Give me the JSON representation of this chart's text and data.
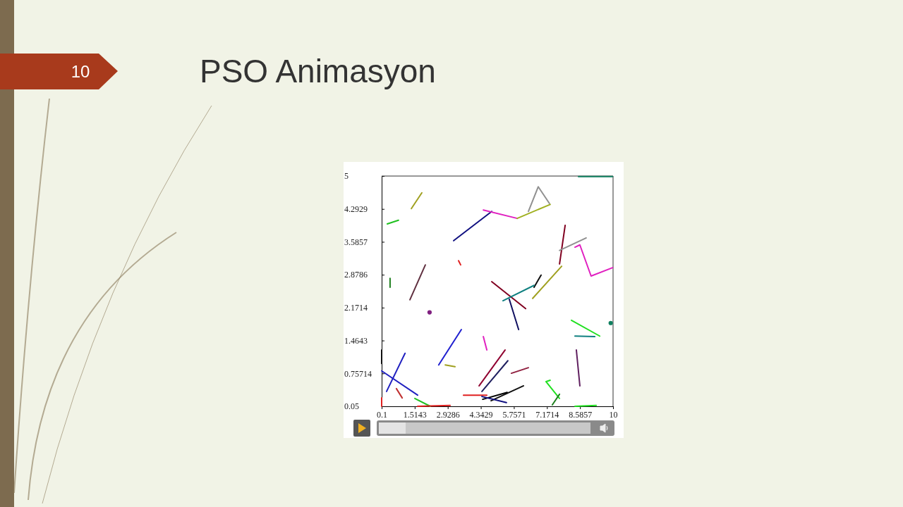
{
  "chart_data": {
    "type": "line",
    "title": "PSO Animasyon",
    "annotations": [
      "10"
    ],
    "xlim": [
      0.1,
      10
    ],
    "ylim": [
      0.05,
      5
    ],
    "xticks": [
      0.1,
      1.5143,
      2.9286,
      4.3429,
      5.7571,
      7.1714,
      8.5857,
      10
    ],
    "yticks": [
      0.05,
      0.75714,
      1.4643,
      2.1714,
      2.8786,
      3.5857,
      4.2929,
      5
    ],
    "grid": false,
    "line_style": "solid",
    "series": [
      {
        "color": "#a0a020",
        "x": [
          1.37,
          1.82
        ],
        "values": [
          4.3,
          4.64
        ]
      },
      {
        "color": "#20c020",
        "x": [
          0.34,
          0.82
        ],
        "values": [
          3.97,
          4.05
        ]
      },
      {
        "color": "#101080",
        "x": [
          3.18,
          4.81
        ],
        "values": [
          3.61,
          4.24
        ]
      },
      {
        "color": "#e020c0",
        "x": [
          4.45,
          5.9
        ],
        "values": [
          4.27,
          4.09
        ]
      },
      {
        "color": "#a0b020",
        "x": [
          5.9,
          7.31
        ],
        "values": [
          4.09,
          4.39
        ]
      },
      {
        "color": "#909090",
        "x": [
          6.38,
          6.8,
          7.28
        ],
        "values": [
          4.24,
          4.77,
          4.41
        ]
      },
      {
        "color": "#108060",
        "x": [
          8.52,
          9.98
        ],
        "values": [
          4.99,
          4.99
        ]
      },
      {
        "color": "#800020",
        "x": [
          7.71,
          7.95
        ],
        "values": [
          3.11,
          3.94
        ]
      },
      {
        "color": "#909090",
        "x": [
          7.71,
          8.85
        ],
        "values": [
          3.4,
          3.67
        ]
      },
      {
        "color": "#e020c0",
        "x": [
          8.37,
          8.58,
          9.06,
          9.98
        ],
        "values": [
          3.47,
          3.52,
          2.85,
          3.03
        ]
      },
      {
        "color": "#a0a020",
        "x": [
          6.56,
          7.8
        ],
        "values": [
          2.37,
          3.06
        ]
      },
      {
        "color": "#101010",
        "x": [
          6.62,
          6.92
        ],
        "values": [
          2.61,
          2.87
        ]
      },
      {
        "color": "#800020",
        "x": [
          4.81,
          6.26
        ],
        "values": [
          2.73,
          2.15
        ]
      },
      {
        "color": "#108080",
        "x": [
          5.29,
          6.62
        ],
        "values": [
          2.32,
          2.65
        ]
      },
      {
        "color": "#101060",
        "x": [
          5.56,
          5.96
        ],
        "values": [
          2.35,
          1.7
        ]
      },
      {
        "color": "#603040",
        "x": [
          1.31,
          1.97
        ],
        "values": [
          2.34,
          3.09
        ]
      },
      {
        "color": "#208020",
        "x": [
          0.46,
          0.46
        ],
        "values": [
          2.61,
          2.8
        ]
      },
      {
        "color": "#e02020",
        "x": [
          3.39,
          3.48
        ],
        "values": [
          3.18,
          3.09
        ]
      },
      {
        "type": "scatter",
        "marker": "circle",
        "color": "#802080",
        "x": [
          2.15
        ],
        "values": [
          2.07
        ]
      },
      {
        "color": "#2020d0",
        "x": [
          2.54,
          3.51
        ],
        "values": [
          0.94,
          1.7
        ]
      },
      {
        "color": "#a0a020",
        "x": [
          2.82,
          3.24
        ],
        "values": [
          0.94,
          0.9
        ]
      },
      {
        "color": "#e020c0",
        "x": [
          4.45,
          4.6
        ],
        "values": [
          1.55,
          1.26
        ]
      },
      {
        "color": "#900030",
        "x": [
          4.27,
          5.38
        ],
        "values": [
          0.49,
          1.26
        ]
      },
      {
        "color": "#202060",
        "x": [
          4.39,
          5.5
        ],
        "values": [
          0.37,
          1.03
        ]
      },
      {
        "color": "#e02020",
        "x": [
          3.6,
          4.6
        ],
        "values": [
          0.29,
          0.29
        ]
      },
      {
        "color": "#902040",
        "x": [
          5.65,
          6.38
        ],
        "values": [
          0.76,
          0.88
        ]
      },
      {
        "color": "#101010",
        "x": [
          4.78,
          6.17
        ],
        "values": [
          0.17,
          0.49
        ]
      },
      {
        "color": "#000000",
        "x": [
          4.42,
          5.47
        ],
        "values": [
          0.2,
          0.35
        ]
      },
      {
        "color": "#101080",
        "x": [
          4.39,
          5.44
        ],
        "values": [
          0.26,
          0.13
        ]
      },
      {
        "color": "#20e020",
        "x": [
          8.22,
          9.43
        ],
        "values": [
          1.9,
          1.56
        ]
      },
      {
        "color": "#108080",
        "x": [
          8.37,
          9.22
        ],
        "values": [
          1.56,
          1.55
        ]
      },
      {
        "type": "scatter",
        "marker": "circle",
        "color": "#108060",
        "x": [
          9.9
        ],
        "values": [
          1.84
        ]
      },
      {
        "color": "#602060",
        "x": [
          8.43,
          8.58
        ],
        "values": [
          1.26,
          0.49
        ]
      },
      {
        "color": "#20e020",
        "x": [
          7.31,
          7.13,
          7.71
        ],
        "values": [
          0.61,
          0.58,
          0.22
        ]
      },
      {
        "color": "#208020",
        "x": [
          7.4,
          7.71
        ],
        "values": [
          0.08,
          0.31
        ]
      },
      {
        "color": "#20e020",
        "x": [
          8.37,
          9.28
        ],
        "values": [
          0.05,
          0.07
        ]
      },
      {
        "color": "#2020c0",
        "x": [
          0.31,
          1.1
        ],
        "values": [
          0.37,
          1.19
        ]
      },
      {
        "color": "#2020c0",
        "x": [
          0.1,
          1.64
        ],
        "values": [
          0.81,
          0.29
        ]
      },
      {
        "color": "#c03030",
        "x": [
          0.73,
          0.98
        ],
        "values": [
          0.43,
          0.23
        ]
      },
      {
        "color": "#20c020",
        "x": [
          1.52,
          2.18
        ],
        "values": [
          0.22,
          0.05
        ]
      },
      {
        "color": "#e02020",
        "x": [
          1.64,
          3.03
        ],
        "values": [
          0.05,
          0.07
        ]
      },
      {
        "color": "#101010",
        "x": [
          0.1,
          0.1
        ],
        "values": [
          1.26,
          0.97
        ]
      },
      {
        "color": "#e02020",
        "x": [
          0.1,
          0.1
        ],
        "values": [
          0.23,
          0.05
        ]
      }
    ]
  }
}
